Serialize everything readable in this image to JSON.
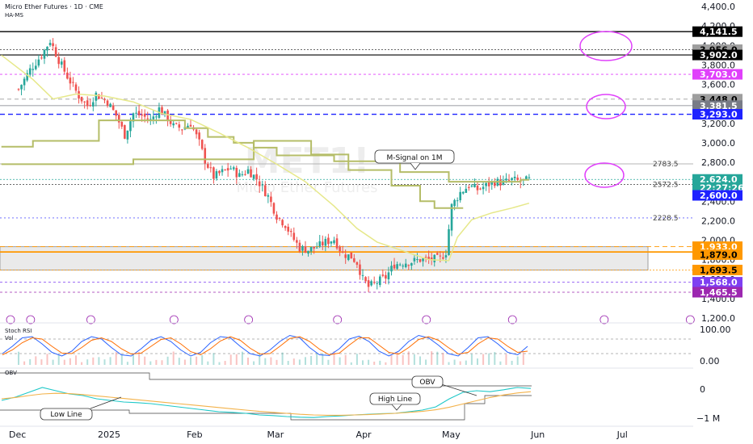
{
  "header": {
    "symbol_line": "Micro Ether Futures · 1D · CME",
    "indicator_line": "HA-MS",
    "watermark_symbol": "MET1!",
    "watermark_name": "Micro Ether Futures"
  },
  "colors": {
    "bull": "#26a69a",
    "bear": "#ef5350",
    "signal_line": "#b5bd68",
    "fast_ma": "#e6e88a",
    "magenta": "#e040fb",
    "blue_dash": "#1e22ff",
    "orange": "#ff9800",
    "stoch_k": "#2962ff",
    "stoch_d": "#ff6d00",
    "obv": "#1ec8c8",
    "obv_ma": "#f3b24a"
  },
  "annotations": {
    "m_signal_label": "M-Signal on 1M",
    "high_line_label": "High Line",
    "low_line_label": "Low Line",
    "obv_label": "OBV"
  },
  "price_tags": [
    {
      "text": "4,141.5",
      "price": 4141.5,
      "bg": "#000000",
      "fg": "#ffffff"
    },
    {
      "text": "3,956.0",
      "price": 3956.0,
      "bg": "#9e9e9e",
      "fg": "#000000"
    },
    {
      "text": "3,902.0",
      "price": 3902.0,
      "bg": "#000000",
      "fg": "#ffffff"
    },
    {
      "text": "3,703.0",
      "price": 3703.0,
      "bg": "#e040fb",
      "fg": "#ffffff"
    },
    {
      "text": "3,448.0",
      "price": 3448.0,
      "bg": "#9e9e9e",
      "fg": "#000000"
    },
    {
      "text": "3,381.5",
      "price": 3381.5,
      "bg": "#787b86",
      "fg": "#ffffff"
    },
    {
      "text": "3,293.0",
      "price": 3293.0,
      "bg": "#1e22ff",
      "fg": "#ffffff"
    },
    {
      "text": "2,624.0",
      "price": 2624.0,
      "bg": "#26a69a",
      "fg": "#ffffff"
    },
    {
      "text": "22:27:26",
      "price": 2540.0,
      "bg": "#26a69a",
      "fg": "#ffffff"
    },
    {
      "text": "2,600.0",
      "price": 2460.0,
      "bg": "#1e22ff",
      "fg": "#ffffff"
    },
    {
      "text": "1,933.0",
      "price": 1933.0,
      "bg": "#ff9800",
      "fg": "#ffffff"
    },
    {
      "text": "1,879.0",
      "price": 1852.0,
      "bg": "#ff9800",
      "fg": "#000000"
    },
    {
      "text": "1,693.5",
      "price": 1693.5,
      "bg": "#ff9800",
      "fg": "#000000"
    },
    {
      "text": "1,568.0",
      "price": 1568.0,
      "bg": "#7e3ff2",
      "fg": "#ffffff"
    },
    {
      "text": "1,465.5",
      "price": 1465.5,
      "bg": "#9c27b0",
      "fg": "#ffffff"
    }
  ],
  "line_labels": [
    {
      "text": "2783.5",
      "price": 2783.5
    },
    {
      "text": "2572.5",
      "price": 2572.5
    },
    {
      "text": "2228.5",
      "price": 2228.5
    }
  ],
  "chart_data": [
    {
      "type": "candlestick",
      "title": "Micro Ether Futures · 1D · CME",
      "y_axis_ticks": [
        "4,400.0",
        "4,200.0",
        "4,000.0",
        "3,800.0",
        "3,600.0",
        "3,400.0",
        "3,200.0",
        "3,000.0",
        "2,800.0",
        "2,600.0",
        "2,400.0",
        "2,200.0",
        "2,000.0",
        "1,800.0",
        "1,600.0",
        "1,400.0",
        "1,200.0"
      ],
      "y_tick_values": [
        4400,
        4200,
        4000,
        3800,
        3600,
        3400,
        3200,
        3000,
        2800,
        2600,
        2400,
        2200,
        2000,
        1800,
        1600,
        1400,
        1200
      ],
      "ylim": [
        1200,
        4400
      ],
      "x_ticks": [
        "Dec",
        "2025",
        "Feb",
        "Mar",
        "Apr",
        "May",
        "Jun",
        "Jul"
      ],
      "x_tick_days": [
        0,
        31,
        62,
        90,
        121,
        151,
        182,
        212
      ],
      "horizontal_levels": [
        4141.5,
        3956.0,
        3902.0,
        3703.0,
        3448.0,
        3381.5,
        3293.0,
        2783.5,
        2624.0,
        2572.5,
        2228.5,
        1933.0,
        1879.0,
        1693.5,
        1568.0,
        1465.5
      ],
      "support_zone": [
        1693.5,
        1933.0
      ],
      "candle_keyframes": [
        [
          0,
          3550
        ],
        [
          4,
          3750
        ],
        [
          8,
          3900
        ],
        [
          11,
          4050
        ],
        [
          14,
          3850
        ],
        [
          17,
          3680
        ],
        [
          21,
          3480
        ],
        [
          24,
          3380
        ],
        [
          27,
          3500
        ],
        [
          31,
          3420
        ],
        [
          34,
          3280
        ],
        [
          37,
          3080
        ],
        [
          40,
          3300
        ],
        [
          43,
          3280
        ],
        [
          46,
          3230
        ],
        [
          49,
          3350
        ],
        [
          52,
          3250
        ],
        [
          54,
          3170
        ],
        [
          57,
          3150
        ],
        [
          60,
          3200
        ],
        [
          63,
          3000
        ],
        [
          65,
          2820
        ],
        [
          68,
          2650
        ],
        [
          71,
          2700
        ],
        [
          74,
          2740
        ],
        [
          77,
          2660
        ],
        [
          80,
          2720
        ],
        [
          83,
          2630
        ],
        [
          87,
          2450
        ],
        [
          90,
          2250
        ],
        [
          93,
          2160
        ],
        [
          95,
          2050
        ],
        [
          98,
          1920
        ],
        [
          101,
          1900
        ],
        [
          104,
          1930
        ],
        [
          107,
          1980
        ],
        [
          110,
          2010
        ],
        [
          113,
          1860
        ],
        [
          116,
          1830
        ],
        [
          118,
          1770
        ],
        [
          120,
          1600
        ],
        [
          122,
          1520
        ],
        [
          125,
          1570
        ],
        [
          128,
          1620
        ],
        [
          131,
          1750
        ],
        [
          134,
          1770
        ],
        [
          137,
          1780
        ],
        [
          140,
          1800
        ],
        [
          143,
          1800
        ],
        [
          147,
          1810
        ],
        [
          149,
          1880
        ],
        [
          151,
          2350
        ],
        [
          154,
          2490
        ],
        [
          157,
          2560
        ],
        [
          160,
          2520
        ],
        [
          163,
          2560
        ],
        [
          166,
          2600
        ],
        [
          169,
          2590
        ],
        [
          172,
          2620
        ],
        [
          175,
          2600
        ],
        [
          178,
          2620
        ]
      ]
    },
    {
      "type": "line",
      "title": "Stoch RSI",
      "subtitle": "Vol",
      "y_axis_ticks": [
        "100.00",
        "0.00"
      ],
      "ylim": [
        0,
        100
      ],
      "series": [
        {
          "values": [
            20,
            50,
            85,
            90,
            60,
            25,
            10,
            30,
            70,
            90,
            80,
            45,
            15,
            10,
            40,
            75,
            90,
            70,
            35,
            10,
            25,
            65,
            90,
            85,
            50,
            20,
            10,
            35,
            70,
            95,
            85,
            45,
            15,
            12,
            40,
            80,
            92,
            70,
            30,
            10,
            30,
            70,
            95,
            85,
            55,
            20,
            10,
            45,
            85,
            90,
            60,
            25,
            15,
            50
          ]
        },
        {
          "values": [
            15,
            35,
            65,
            85,
            80,
            50,
            22,
            20,
            45,
            75,
            85,
            70,
            40,
            18,
            22,
            50,
            78,
            85,
            60,
            28,
            15,
            40,
            72,
            90,
            75,
            42,
            18,
            20,
            50,
            82,
            90,
            70,
            38,
            15,
            22,
            55,
            85,
            85,
            55,
            25,
            18,
            45,
            78,
            90,
            75,
            45,
            18,
            25,
            60,
            85,
            80,
            50,
            25,
            30
          ]
        }
      ]
    },
    {
      "type": "line",
      "title": "OBV",
      "y_axis_ticks": [
        "0",
        "−1 M"
      ],
      "ylim": [
        -1000000,
        300000
      ],
      "series": [
        {
          "values": [
            -350000,
            -250000,
            -100000,
            50000,
            -50000,
            -150000,
            -200000,
            -300000,
            -350000,
            -400000,
            -420000,
            -450000,
            -500000,
            -550000,
            -600000,
            -650000,
            -700000,
            -720000,
            -750000,
            -800000,
            -820000,
            -850000,
            -870000,
            -880000,
            -850000,
            -830000,
            -800000,
            -780000,
            -760000,
            -750000,
            -700000,
            -650000,
            -550000,
            -300000,
            -100000,
            -50000,
            -80000,
            -20000,
            50000,
            20000
          ]
        },
        {
          "values": [
            -300000,
            -260000,
            -200000,
            -150000,
            -130000,
            -140000,
            -170000,
            -210000,
            -250000,
            -290000,
            -330000,
            -370000,
            -410000,
            -450000,
            -490000,
            -530000,
            -570000,
            -610000,
            -650000,
            -690000,
            -720000,
            -750000,
            -780000,
            -800000,
            -810000,
            -810000,
            -800000,
            -790000,
            -770000,
            -750000,
            -720000,
            -690000,
            -640000,
            -560000,
            -460000,
            -360000,
            -260000,
            -180000,
            -120000,
            -80000
          ]
        }
      ]
    }
  ]
}
